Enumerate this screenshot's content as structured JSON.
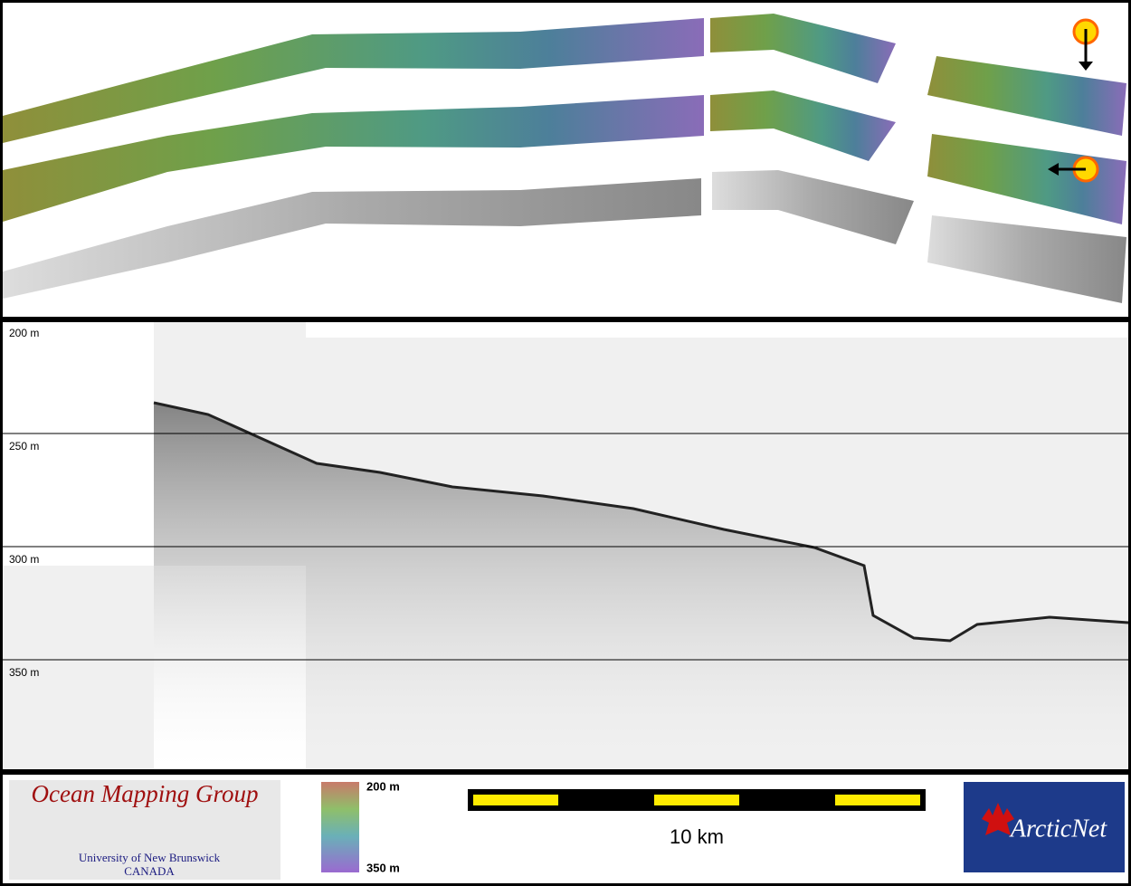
{
  "profile": {
    "depth_labels": [
      "200 m",
      "250 m",
      "300 m",
      "350 m"
    ]
  },
  "footer": {
    "logo_title": "Ocean Mapping Group",
    "logo_university": "University of New Brunswick",
    "logo_country": "CANADA",
    "colorbar_top": "200 m",
    "colorbar_bottom": "350 m",
    "scale_label": "10 km",
    "partner_logo": "ArcticNet"
  }
}
